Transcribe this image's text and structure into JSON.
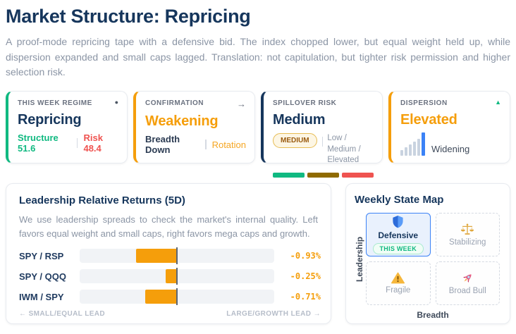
{
  "colors": {
    "navy": "#16365c",
    "teal": "#10b981",
    "orange": "#f59e0b",
    "red": "#ef5350",
    "blue": "#3b82f6",
    "gold_dark": "#8f6a00",
    "muted_text": "#8b95a5"
  },
  "header": {
    "title": "Market Structure: Repricing",
    "subtitle": "A proof-mode repricing tape with a defensive bid. The index chopped lower, but equal weight held up, while dispersion expanded and small caps lagged. Translation: not capitulation, but tighter risk permission and higher selection risk."
  },
  "regime_cards": [
    {
      "label": "THIS WEEK REGIME",
      "icon": "dot-icon",
      "icon_glyph": "●",
      "title": "Repricing",
      "meta_left": "Structure 51.6",
      "meta_right": "Risk 48.4",
      "accent": "#10b981"
    },
    {
      "label": "CONFIRMATION",
      "icon": "arrow-right-icon",
      "icon_glyph": "→",
      "title": "Weakening",
      "meta_left": "Breadth Down",
      "meta_right": "Rotation",
      "accent": "#f59e0b"
    },
    {
      "label": "SPILLOVER RISK",
      "title": "Medium",
      "badge": "MEDIUM",
      "scale_text": "Low / Medium / Elevated",
      "segments": [
        "#10b981",
        "#8f6a00",
        "#ef5350"
      ],
      "accent": "#16365c"
    },
    {
      "label": "DISPERSION",
      "icon": "triangle-up-icon",
      "icon_glyph": "▲",
      "title": "Elevated",
      "meta": "Widening",
      "accent": "#f59e0b"
    }
  ],
  "leadership": {
    "title": "Leadership Relative Returns (5D)",
    "description": "We use leadership spreads to check the market's internal quality. Left favors equal weight and small caps, right favors mega caps and growth.",
    "footer_left": "← SMALL/EQUAL LEAD",
    "footer_right": "LARGE/GROWTH LEAD →",
    "chart_data": {
      "type": "bar",
      "orientation": "horizontal_diverging",
      "categories": [
        "SPY / RSP",
        "SPY / QQQ",
        "IWM / SPY"
      ],
      "values": [
        -0.93,
        -0.25,
        -0.71
      ],
      "value_labels": [
        "-0.93%",
        "-0.25%",
        "-0.71%"
      ],
      "xlim": [
        -2.2,
        2.2
      ],
      "bar_color": "#f59e0b",
      "baseline": 0,
      "grid": false,
      "legend": false
    }
  },
  "state_map": {
    "title": "Weekly State Map",
    "y_axis": "Leadership",
    "x_axis": "Breadth",
    "cells": [
      {
        "label": "Defensive",
        "icon": "shield-icon",
        "active": true,
        "badge": "THIS WEEK"
      },
      {
        "label": "Stabilizing",
        "icon": "scales-icon",
        "active": false
      },
      {
        "label": "Fragile",
        "icon": "warning-icon",
        "active": false
      },
      {
        "label": "Broad Bull",
        "icon": "rocket-icon",
        "active": false
      }
    ]
  }
}
